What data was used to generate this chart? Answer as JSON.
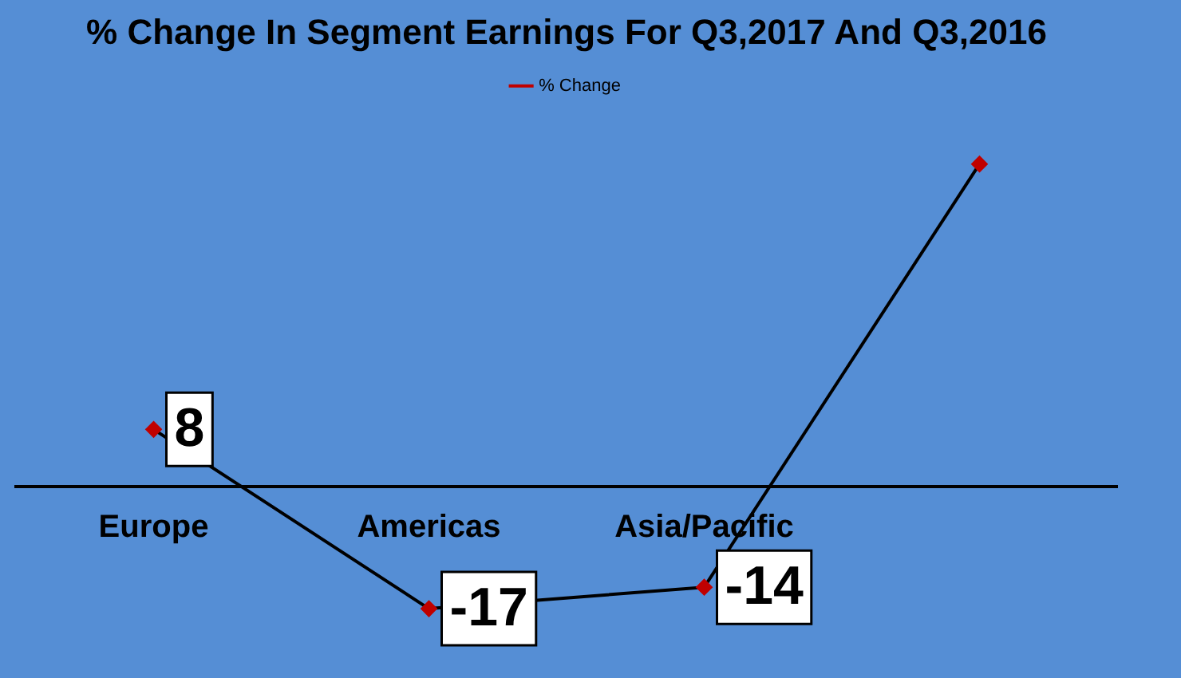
{
  "chart_data": {
    "type": "line",
    "title": "% Change In Segment Earnings For Q3,2017 And Q3,2016",
    "categories": [
      "Europe",
      "Americas",
      "Asia/Pacific",
      null
    ],
    "series": [
      {
        "name": "% Change",
        "color": "#000000",
        "values": [
          8,
          -17,
          -14,
          45
        ],
        "value_labels": [
          "8",
          "-17",
          "-14",
          null
        ]
      }
    ],
    "marker": "diamond",
    "legend": "top",
    "grid": false
  }
}
